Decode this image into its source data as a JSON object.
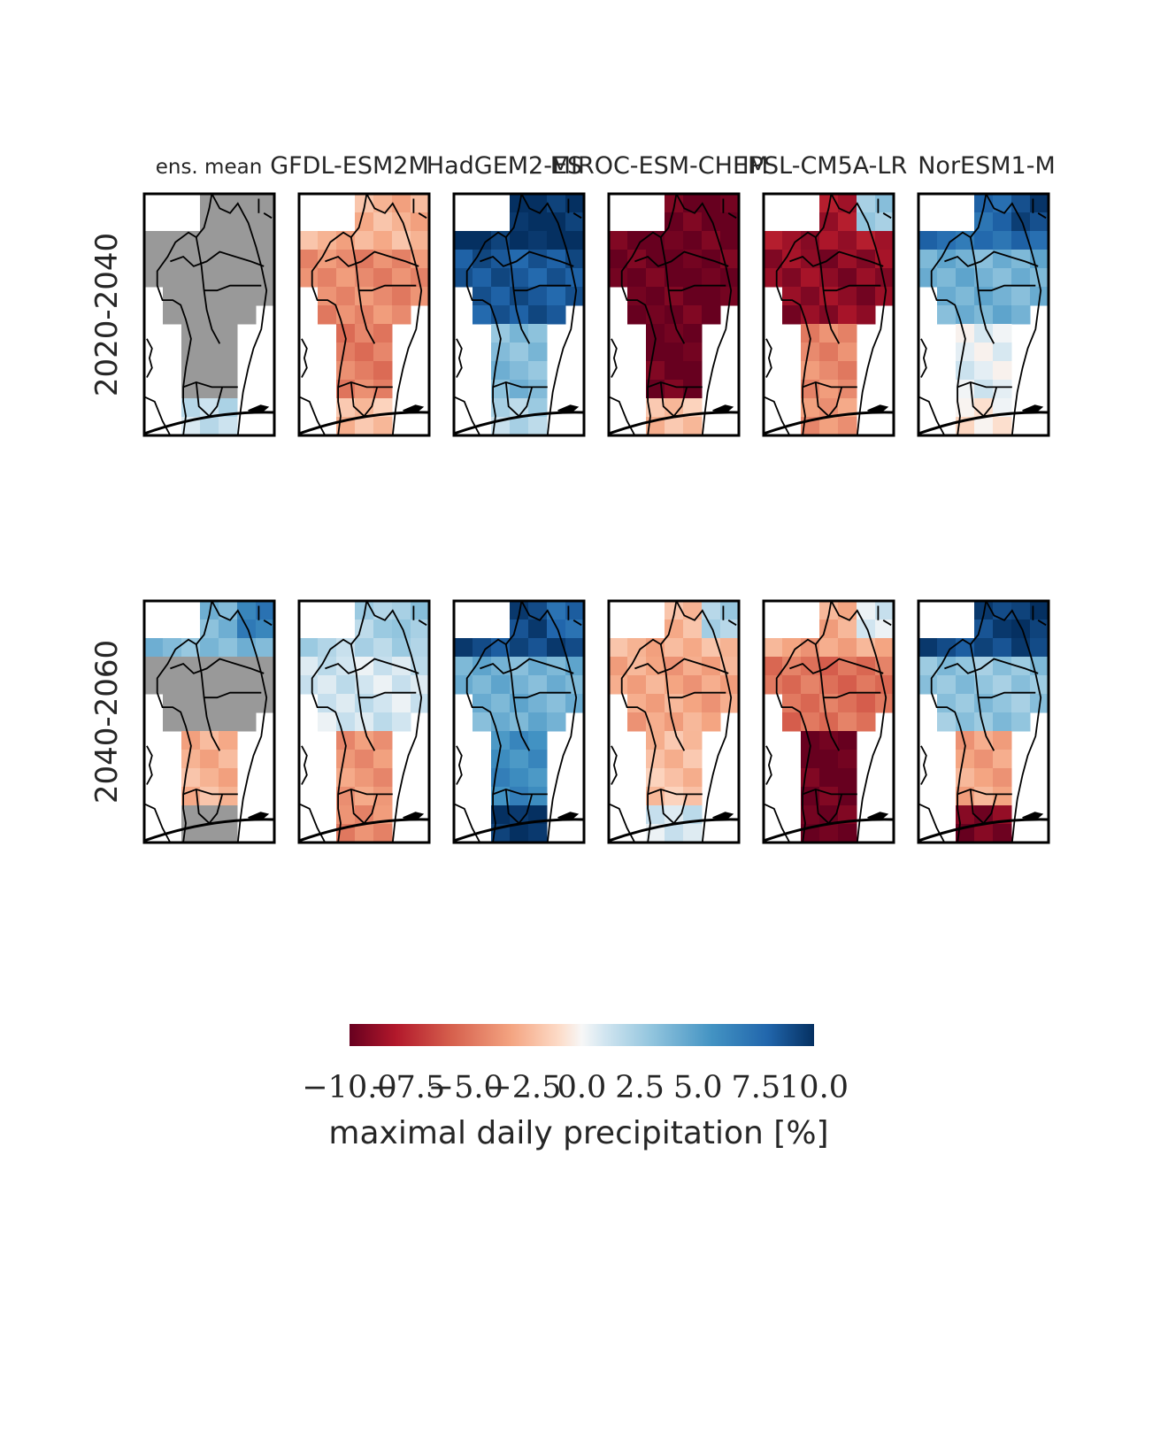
{
  "chart_data": {
    "type": "heatmap",
    "columns": [
      "ens. mean",
      "GFDL-ESM2M",
      "HadGEM2-ES",
      "MIROC-ESM-CHEM",
      "IPSL-CM5A-LR",
      "NorESM1-M"
    ],
    "rows": [
      "2020-2040",
      "2040-2060"
    ],
    "colorbar": {
      "label": "maximal daily precipitation [%]",
      "range": [
        -10.0,
        10.0
      ],
      "ticks": [
        "−10.0",
        "−7.5",
        "−5.0",
        "−2.5",
        "0.0",
        "2.5",
        "5.0",
        "7.5",
        "10.0"
      ],
      "colormap": "RdBu",
      "orientation": "horizontal"
    },
    "no_significance_color": "#999999",
    "panels": [
      {
        "row": "2020-2040",
        "model": "ens. mean",
        "north": "gray",
        "center": "gray",
        "south": "gray",
        "coast": 1.5,
        "north_value": 0
      },
      {
        "row": "2020-2040",
        "model": "GFDL-ESM2M",
        "north": -2.5,
        "center": -4.0,
        "south": -4.5,
        "coast": -2.0,
        "north_value": -2.5
      },
      {
        "row": "2020-2040",
        "model": "HadGEM2-ES",
        "north": 10.0,
        "center": 8.5,
        "south": 3.5,
        "coast": 2.0,
        "north_value": 10.0
      },
      {
        "row": "2020-2040",
        "model": "MIROC-ESM-CHEM",
        "north": -10.0,
        "center": -10.0,
        "south": -10.0,
        "coast": -2.0,
        "north_value": -10.0
      },
      {
        "row": "2020-2040",
        "model": "IPSL-CM5A-LR",
        "north": -8.5,
        "center": -9.0,
        "south": -4.0,
        "coast": -3.5,
        "north_value": 3.0
      },
      {
        "row": "2020-2040",
        "model": "NorESM1-M",
        "north": 7.5,
        "center": 4.0,
        "south": 0.5,
        "coast": -0.5,
        "north_value": 9.5
      },
      {
        "row": "2040-2060",
        "model": "ens. mean",
        "north": 3.5,
        "center": "gray",
        "south": -2.5,
        "coast": "gray",
        "north_value": 7.0
      },
      {
        "row": "2040-2060",
        "model": "GFDL-ESM2M",
        "north": 2.0,
        "center": 1.0,
        "south": -3.5,
        "coast": -4.0,
        "north_value": 3.0
      },
      {
        "row": "2040-2060",
        "model": "HadGEM2-ES",
        "north": 9.0,
        "center": 4.0,
        "south": 6.0,
        "coast": 10.0,
        "north_value": 8.0
      },
      {
        "row": "2040-2060",
        "model": "MIROC-ESM-CHEM",
        "north": -2.5,
        "center": -3.0,
        "south": -2.0,
        "coast": 1.0,
        "north_value": 2.5
      },
      {
        "row": "2040-2060",
        "model": "IPSL-CM5A-LR",
        "north": -3.0,
        "center": -5.0,
        "south": -10.0,
        "coast": -10.0,
        "north_value": 1.0
      },
      {
        "row": "2040-2060",
        "model": "NorESM1-M",
        "north": 9.0,
        "center": 3.0,
        "south": -3.0,
        "coast": -9.5,
        "north_value": 10.0
      }
    ]
  }
}
